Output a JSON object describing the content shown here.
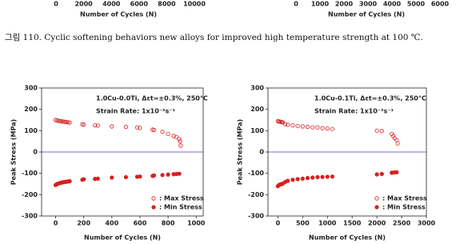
{
  "previous_axes": [
    {
      "xticks": [
        0,
        2000,
        4000,
        6000,
        8000,
        10000
      ],
      "xlabel": "Number of Cycles (N)"
    },
    {
      "xticks": [
        0,
        1000,
        2000,
        3000,
        4000,
        5000,
        6000
      ],
      "xlabel": "Number of Cycles (N)"
    }
  ],
  "caption": "그림 110. Cyclic softening behaviors new alloys for improved high temperature strength at 100 ℃.",
  "chart_data": [
    {
      "type": "scatter",
      "annotation": [
        "1.0Cu-0.0Ti, Δεt=±0.3%, 250°C",
        "Strain Rate: 1x10⁻³s⁻¹"
      ],
      "xlabel": "Number of Cycles (N)",
      "ylabel": "Peak Stress (MPa)",
      "xlim": [
        -100,
        1050
      ],
      "ylim": [
        -300,
        300
      ],
      "xticks": [
        0,
        200,
        400,
        600,
        800,
        1000
      ],
      "yticks": [
        -300,
        -200,
        -100,
        0,
        100,
        200,
        300
      ],
      "series": [
        {
          "name": ": Max Stress",
          "color": "#d62020",
          "marker": "open",
          "x": [
            0,
            10,
            20,
            30,
            40,
            50,
            60,
            70,
            80,
            90,
            100,
            190,
            200,
            280,
            300,
            400,
            500,
            580,
            600,
            690,
            700,
            760,
            800,
            840,
            860,
            880,
            885,
            890
          ],
          "values": [
            150,
            148,
            146,
            145,
            144,
            143,
            142,
            141,
            140,
            139,
            138,
            130,
            128,
            125,
            124,
            120,
            118,
            115,
            113,
            105,
            103,
            95,
            85,
            75,
            70,
            60,
            50,
            30
          ]
        },
        {
          "name": ": Min Stress",
          "color": "#d62020",
          "marker": "filled",
          "x": [
            0,
            10,
            20,
            30,
            40,
            50,
            60,
            70,
            80,
            90,
            100,
            190,
            200,
            280,
            300,
            400,
            500,
            580,
            600,
            690,
            700,
            760,
            800,
            840,
            860,
            880
          ],
          "values": [
            -155,
            -150,
            -148,
            -146,
            -144,
            -142,
            -141,
            -140,
            -139,
            -138,
            -137,
            -130,
            -128,
            -126,
            -125,
            -120,
            -118,
            -116,
            -115,
            -112,
            -110,
            -108,
            -106,
            -104,
            -103,
            -102
          ]
        }
      ]
    },
    {
      "type": "scatter",
      "annotation": [
        "1.0Cu-0.1Ti, Δεt=±0.3%, 250°C",
        "Strain Rate: 1x10⁻³s⁻¹"
      ],
      "xlabel": "Number of Cycles (N)",
      "ylabel": "Peak Stress (MPa)",
      "xlim": [
        -200,
        3000
      ],
      "ylim": [
        -300,
        300
      ],
      "xticks": [
        0,
        500,
        1000,
        1500,
        2000,
        2500,
        3000
      ],
      "yticks": [
        -300,
        -200,
        -100,
        0,
        100,
        200,
        300
      ],
      "series": [
        {
          "name": ": Max Stress",
          "color": "#d62020",
          "marker": "open",
          "x": [
            0,
            20,
            40,
            60,
            80,
            100,
            150,
            200,
            300,
            400,
            500,
            600,
            700,
            800,
            900,
            1000,
            1100,
            2000,
            2100,
            2300,
            2330,
            2360,
            2400,
            2420
          ],
          "values": [
            145,
            143,
            142,
            141,
            140,
            139,
            130,
            128,
            125,
            122,
            120,
            118,
            116,
            115,
            112,
            110,
            108,
            100,
            98,
            85,
            75,
            65,
            55,
            40
          ]
        },
        {
          "name": ": Min Stress",
          "color": "#d62020",
          "marker": "filled",
          "x": [
            0,
            20,
            50,
            80,
            100,
            150,
            200,
            300,
            400,
            500,
            600,
            700,
            800,
            900,
            1000,
            1100,
            2000,
            2100,
            2300,
            2350,
            2400
          ],
          "values": [
            -160,
            -155,
            -152,
            -150,
            -148,
            -140,
            -135,
            -130,
            -127,
            -125,
            -122,
            -120,
            -118,
            -117,
            -116,
            -115,
            -105,
            -103,
            -97,
            -96,
            -95
          ]
        }
      ]
    }
  ]
}
